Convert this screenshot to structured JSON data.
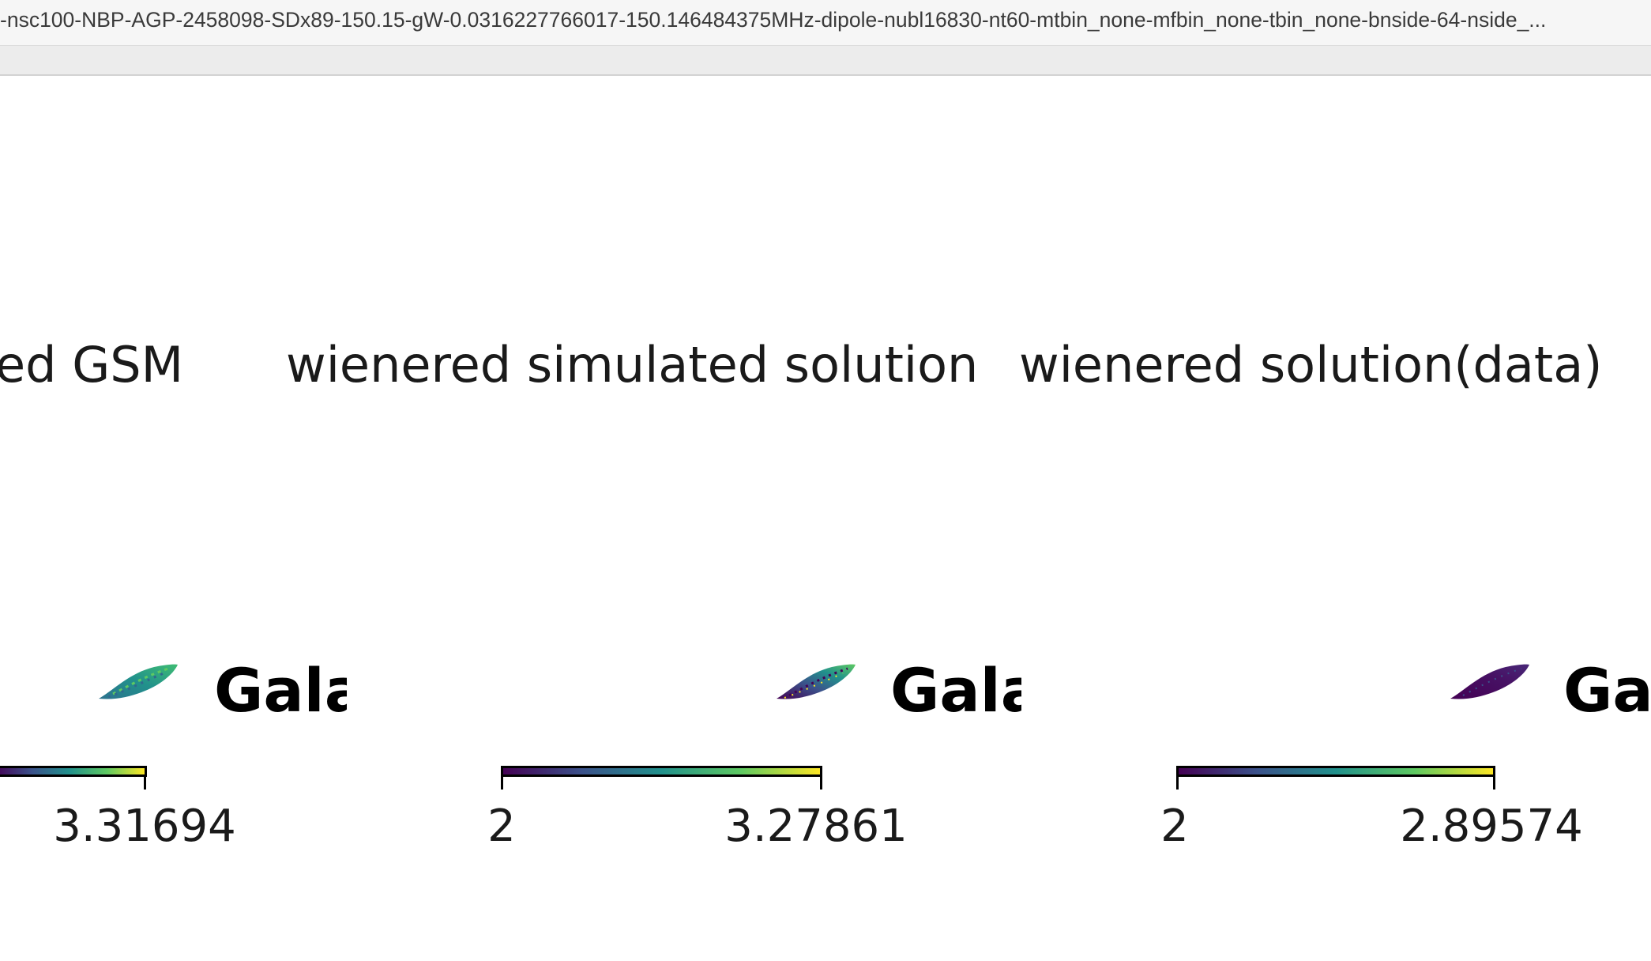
{
  "window": {
    "title": "-nsc100-NBP-AGP-2458098-SDx89-150.15-gW-0.0316227766017-150.146484375MHz-dipole-nubl16830-nt60-mtbin_none-mfbin_none-tbin_none-bnside-64-nside_..."
  },
  "panels": [
    {
      "title": "ed GSM",
      "galaxy_label": "Gala",
      "colorbar": {
        "min_label": "",
        "max_label": "3.31694"
      },
      "map_icon": "galaxy-map-icon"
    },
    {
      "title": "wienered simulated solution",
      "galaxy_label": "Gala",
      "colorbar": {
        "min_label": "2",
        "max_label": "3.27861"
      },
      "map_icon": "galaxy-map-icon"
    },
    {
      "title": "wienered solution(data)",
      "galaxy_label": "Ga",
      "colorbar": {
        "min_label": "2",
        "max_label": "2.89574"
      },
      "map_icon": "galaxy-map-icon"
    }
  ],
  "colormap": [
    "#440154",
    "#3b528b",
    "#21918c",
    "#5ec962",
    "#fde725"
  ]
}
